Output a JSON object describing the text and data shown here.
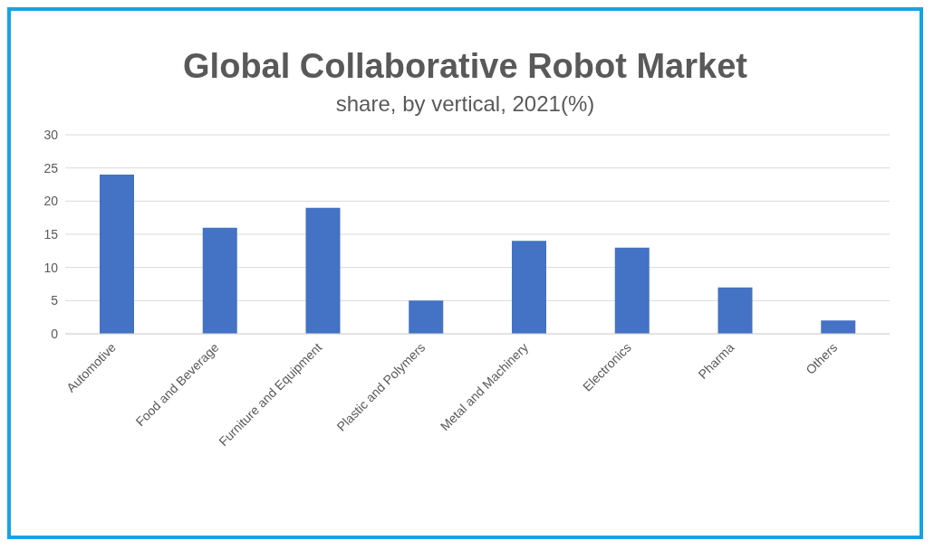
{
  "chart_data": {
    "type": "bar",
    "title": "Global Collaborative Robot Market",
    "subtitle": "share, by vertical, 2021(%)",
    "categories": [
      "Automotive",
      "Food and Beverage",
      "Furniture and Equipment",
      "Plastic and Polymers",
      "Metal and Machinery",
      "Electronics",
      "Pharma",
      "Others"
    ],
    "values": [
      24,
      16,
      19,
      5,
      14,
      13,
      7,
      2
    ],
    "color": "#4472c4",
    "ylim": [
      0,
      30
    ],
    "yticks": [
      0,
      5,
      10,
      15,
      20,
      25,
      30
    ],
    "grid": "y"
  }
}
